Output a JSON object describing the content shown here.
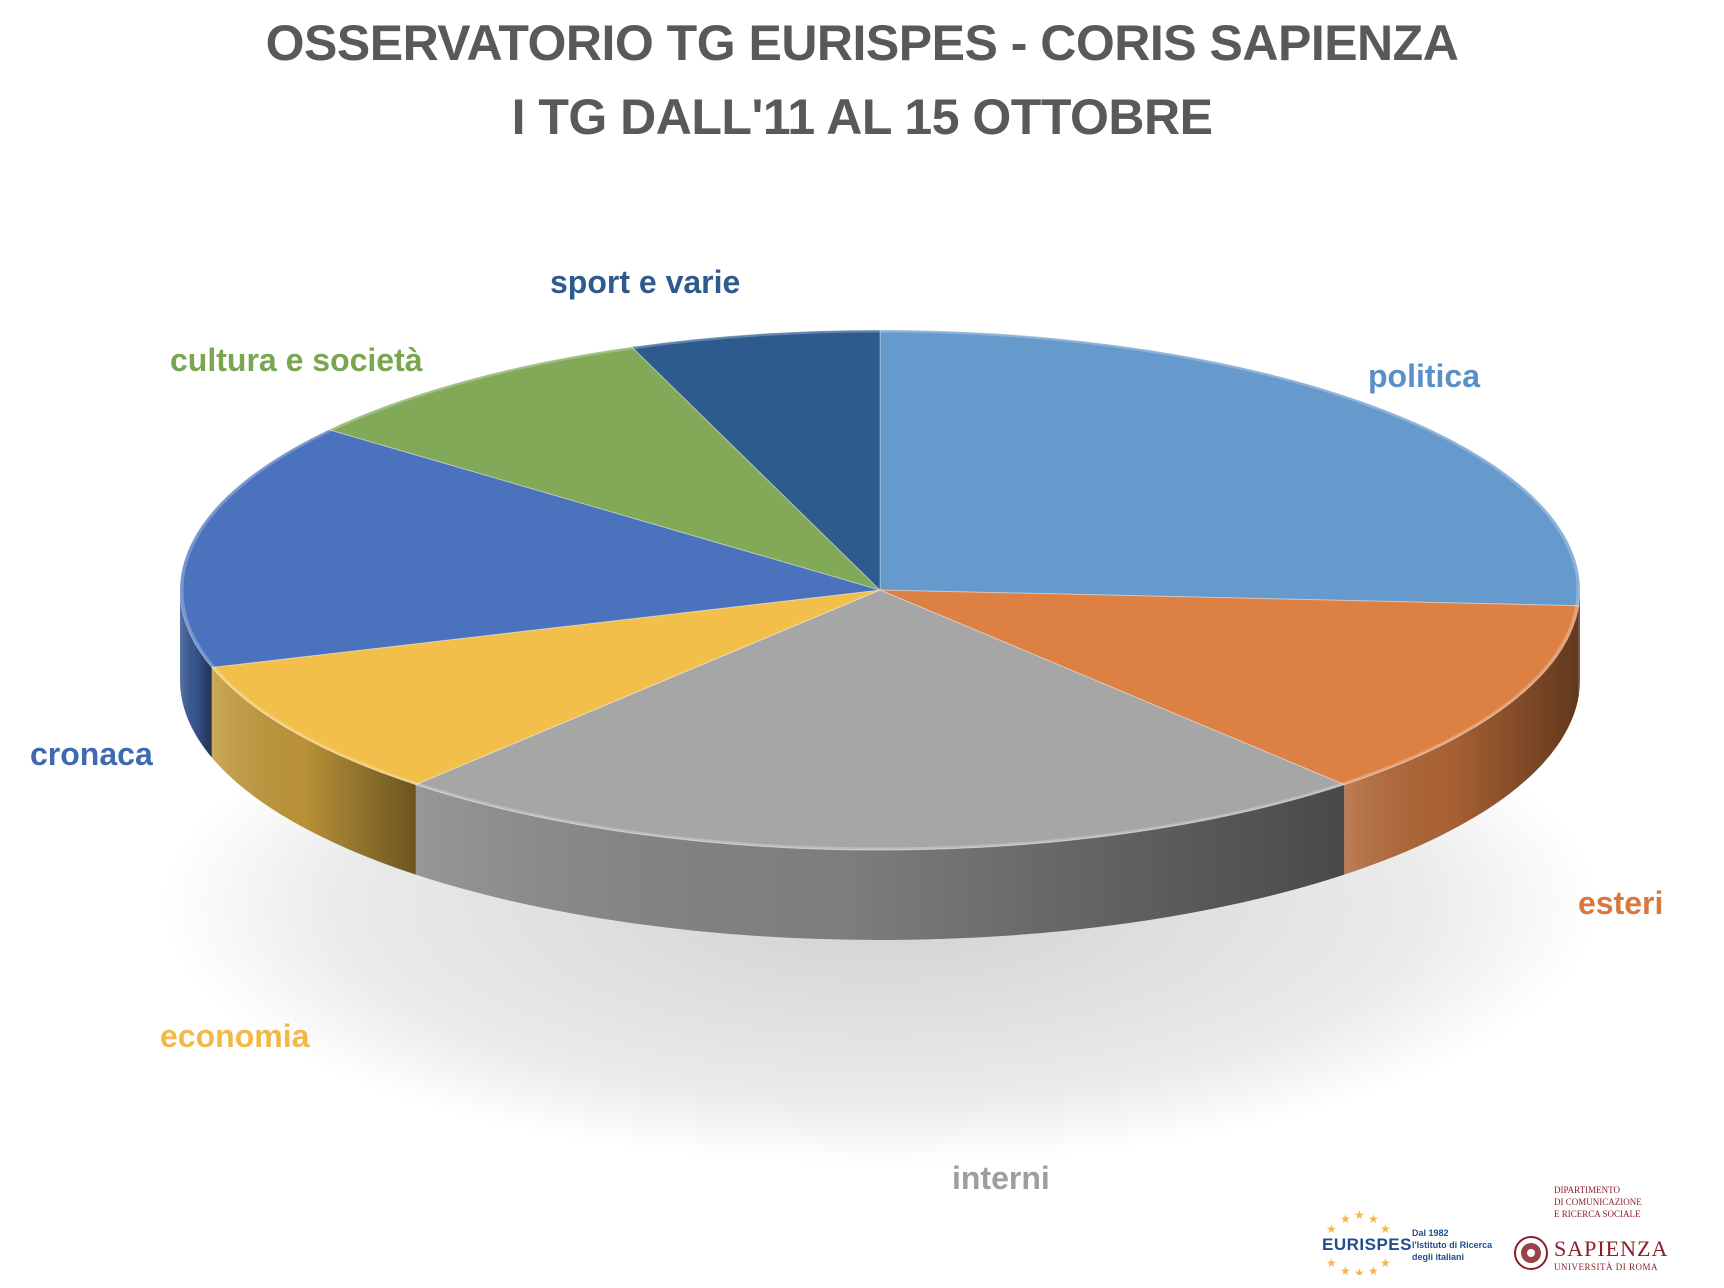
{
  "chart_data": {
    "type": "pie",
    "title_lines": [
      "OSSERVATORIO TG EURISPES - CORIS SAPIENZA",
      "I TG DALL'11 AL 15 OTTOBRE"
    ],
    "categories": [
      "politica",
      "esteri",
      "interni",
      "economia",
      "cronaca",
      "cultura e società",
      "sport e varie"
    ],
    "values": [
      27,
      13,
      24,
      9,
      16,
      9,
      6
    ],
    "colors": [
      "#6699cc",
      "#dd8044",
      "#a6a6a6",
      "#f2bf4a",
      "#4a72bd",
      "#82a957",
      "#2e5b8e"
    ],
    "label_colors": [
      "#5b8fc7",
      "#d9773d",
      "#9e9e9e",
      "#f2b84a",
      "#3f6ab0",
      "#7aa650",
      "#2e5b8e"
    ],
    "legend": "labels beside slices",
    "start_angle_deg": -90,
    "direction": "clockwise",
    "style": "3d"
  },
  "footer": {
    "eurispes": {
      "name": "EURISPES",
      "tagline": [
        "Dal 1982",
        "l'Istituto di Ricerca",
        "degli italiani"
      ]
    },
    "sapienza": {
      "dept": [
        "DIPARTIMENTO",
        "DI COMUNICAZIONE",
        "E RICERCA SOCIALE"
      ],
      "name": "SAPIENZA",
      "sub": "UNIVERSITÀ DI ROMA"
    }
  }
}
